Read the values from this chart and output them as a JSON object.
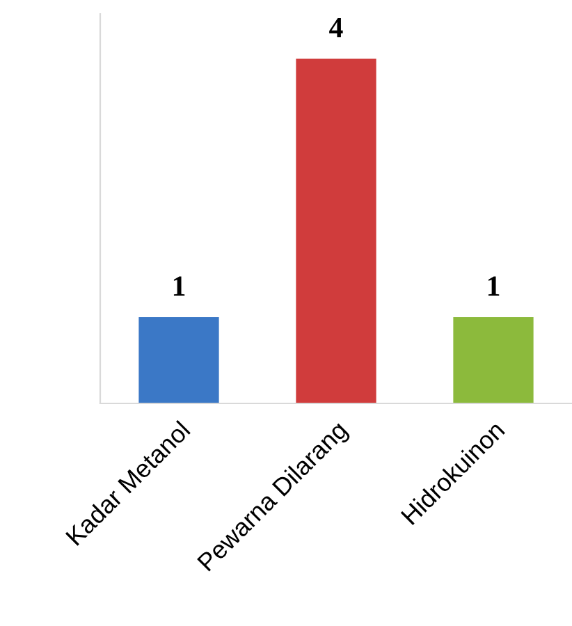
{
  "chart_data": {
    "type": "bar",
    "categories": [
      "Kadar Metanol",
      "Pewarna Dilarang",
      "Hidrokuinon"
    ],
    "values": [
      1,
      4,
      1
    ],
    "colors": [
      "#3b78c6",
      "#d03c3c",
      "#8cba3c"
    ],
    "data_labels": true,
    "grid": false,
    "legend": false,
    "tick_labels": "x"
  }
}
